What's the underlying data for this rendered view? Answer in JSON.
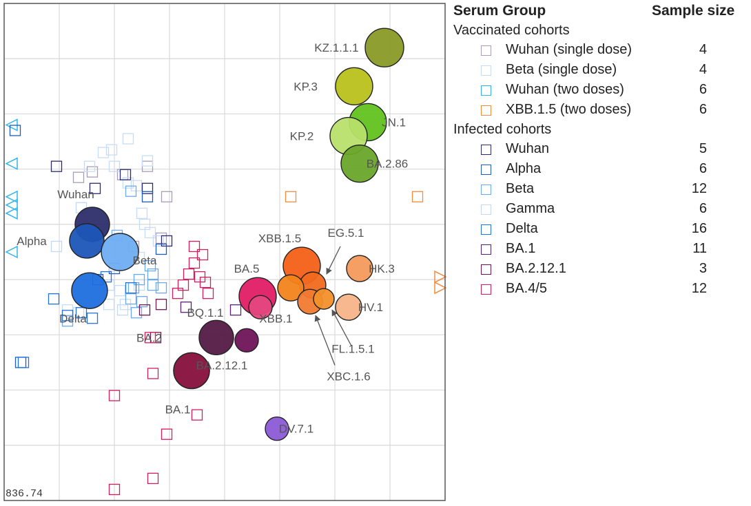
{
  "chart_data": {
    "type": "scatter",
    "title": "",
    "scale_label": "836.74",
    "grid": true,
    "xlim": [
      0,
      8
    ],
    "ylim": [
      0,
      9
    ],
    "antigens": [
      {
        "name": "KZ.1.1.1",
        "x": 6.9,
        "y": 8.2,
        "size": 28,
        "color": "#8a9a26"
      },
      {
        "name": "KP.3",
        "x": 6.35,
        "y": 7.5,
        "size": 27,
        "color": "#b8c11c"
      },
      {
        "name": "JN.1",
        "x": 6.6,
        "y": 6.85,
        "size": 27,
        "color": "#62c21f"
      },
      {
        "name": "KP.2",
        "x": 6.25,
        "y": 6.6,
        "size": 27,
        "color": "#b7e06a"
      },
      {
        "name": "BA.2.86",
        "x": 6.45,
        "y": 6.1,
        "size": 27,
        "color": "#6aa52b"
      },
      {
        "name": "Wuhan",
        "x": 1.6,
        "y": 5.0,
        "size": 25,
        "color": "#2d2d6b"
      },
      {
        "name": "Alpha",
        "x": 1.5,
        "y": 4.7,
        "size": 25,
        "color": "#1c56b8"
      },
      {
        "name": "Beta",
        "x": 2.1,
        "y": 4.5,
        "size": 27,
        "color": "#6faef2"
      },
      {
        "name": "Delta",
        "x": 1.55,
        "y": 3.8,
        "size": 26,
        "color": "#1f6fde"
      },
      {
        "name": "XBB.1.5",
        "x": 5.4,
        "y": 4.25,
        "size": 27,
        "color": "#f46017"
      },
      {
        "name": "EG.5.1",
        "x": 5.6,
        "y": 3.9,
        "size": 19,
        "color": "#f26a1f"
      },
      {
        "name": "HK.3",
        "x": 6.45,
        "y": 4.2,
        "size": 19,
        "color": "#f59a5c"
      },
      {
        "name": "BA.5",
        "x": 4.6,
        "y": 3.7,
        "size": 27,
        "color": "#e01e66"
      },
      {
        "name": "XBB",
        "x": 5.2,
        "y": 3.85,
        "size": 19,
        "color": "#f3841b"
      },
      {
        "name": "XBB.1",
        "x": 4.65,
        "y": 3.5,
        "size": 17,
        "color": "#e4477e"
      },
      {
        "name": "XBC.1.6",
        "x": 5.55,
        "y": 3.6,
        "size": 18,
        "color": "#f07a30"
      },
      {
        "name": "FL.1.5.1",
        "x": 5.8,
        "y": 3.65,
        "size": 15,
        "color": "#f3902a"
      },
      {
        "name": "HV.1",
        "x": 6.25,
        "y": 3.5,
        "size": 19,
        "color": "#f7b489"
      },
      {
        "name": "BQ.1.1",
        "x": 3.85,
        "y": 2.95,
        "size": 25,
        "color": "#531a45"
      },
      {
        "name": "BA.2.12.1",
        "x": 4.4,
        "y": 2.9,
        "size": 17,
        "color": "#6f1459"
      },
      {
        "name": "BA.2",
        "x": 3.4,
        "y": 2.35,
        "size": 26,
        "color": "#8c1a46"
      },
      {
        "name": "BA.1",
        "x": 3.4,
        "y": 2.35,
        "size": 26,
        "color": "#8c1a46"
      },
      {
        "name": "DV.7.1",
        "x": 4.95,
        "y": 1.3,
        "size": 17,
        "color": "#8c5ad6"
      }
    ],
    "sera": [
      {
        "group": "Wuhan (single dose)",
        "x": 1.35,
        "y": 5.85
      },
      {
        "group": "Wuhan (single dose)",
        "x": 1.6,
        "y": 5.95
      },
      {
        "group": "Wuhan (single dose)",
        "x": 2.15,
        "y": 5.9
      },
      {
        "group": "Wuhan (single dose)",
        "x": 2.6,
        "y": 6.05
      },
      {
        "group": "Wuhan (single dose)",
        "x": 2.95,
        "y": 5.5
      },
      {
        "group": "Wuhan (single dose)",
        "x": 2.85,
        "y": 4.75
      },
      {
        "group": "Wuhan (single dose)",
        "x": 2.35,
        "y": 4.6
      },
      {
        "group": "Beta (single dose)",
        "x": 2.25,
        "y": 6.55
      },
      {
        "group": "Beta (single dose)",
        "x": 1.95,
        "y": 6.35
      },
      {
        "group": "Beta (single dose)",
        "x": 1.8,
        "y": 6.3
      },
      {
        "group": "Beta (single dose)",
        "x": 2.6,
        "y": 6.15
      },
      {
        "group": "Beta (single dose)",
        "x": 1.55,
        "y": 6.05
      },
      {
        "group": "Beta (single dose)",
        "x": 2.4,
        "y": 5.7
      },
      {
        "group": "Beta (single dose)",
        "x": 2.25,
        "y": 5.75
      },
      {
        "group": "Beta (single dose)",
        "x": 2.5,
        "y": 5.2
      },
      {
        "group": "Beta (single dose)",
        "x": 2.55,
        "y": 5.0
      },
      {
        "group": "Beta (single dose)",
        "x": 2.65,
        "y": 4.85
      },
      {
        "group": "Beta (single dose)",
        "x": 2.8,
        "y": 4.7
      },
      {
        "group": "Beta (single dose)",
        "x": 2.45,
        "y": 4.4
      },
      {
        "group": "Beta (single dose)",
        "x": 2.1,
        "y": 3.8
      },
      {
        "group": "Beta (single dose)",
        "x": 1.9,
        "y": 3.55
      },
      {
        "group": "Beta (single dose)",
        "x": 2.2,
        "y": 3.55
      },
      {
        "group": "Beta (single dose)",
        "x": 2.45,
        "y": 3.9
      },
      {
        "group": "Beta (single dose)",
        "x": 1.35,
        "y": 3.4
      },
      {
        "group": "Beta (single dose)",
        "x": 1.15,
        "y": 3.45
      },
      {
        "group": "Beta (single dose)",
        "x": 2.0,
        "y": 6.05
      },
      {
        "group": "Wuhan (two doses)",
        "x": 0.15,
        "y": 6.8,
        "marker": "triangle-left"
      },
      {
        "group": "Wuhan (two doses)",
        "x": 0.15,
        "y": 6.1,
        "marker": "triangle-left"
      },
      {
        "group": "Wuhan (two doses)",
        "x": 0.15,
        "y": 5.5,
        "marker": "triangle-left"
      },
      {
        "group": "Wuhan (two doses)",
        "x": 0.15,
        "y": 5.35,
        "marker": "triangle-left"
      },
      {
        "group": "Wuhan (two doses)",
        "x": 0.15,
        "y": 5.2,
        "marker": "triangle-left"
      },
      {
        "group": "Wuhan (two doses)",
        "x": 0.15,
        "y": 4.5,
        "marker": "triangle-left"
      },
      {
        "group": "XBB.1.5 (two doses)",
        "x": 5.2,
        "y": 5.5
      },
      {
        "group": "XBB.1.5 (two doses)",
        "x": 7.5,
        "y": 5.5
      },
      {
        "group": "XBB.1.5 (two doses)",
        "x": 7.9,
        "y": 4.05,
        "marker": "triangle-right"
      },
      {
        "group": "XBB.1.5 (two doses)",
        "x": 7.9,
        "y": 3.85,
        "marker": "triangle-right"
      },
      {
        "group": "Wuhan",
        "x": 0.95,
        "y": 6.05
      },
      {
        "group": "Wuhan",
        "x": 1.65,
        "y": 5.65
      },
      {
        "group": "Wuhan",
        "x": 2.2,
        "y": 5.9
      },
      {
        "group": "Wuhan",
        "x": 2.6,
        "y": 5.65
      },
      {
        "group": "Wuhan",
        "x": 2.95,
        "y": 4.7
      },
      {
        "group": "Alpha",
        "x": 0.2,
        "y": 6.7
      },
      {
        "group": "Alpha",
        "x": 2.6,
        "y": 5.5
      },
      {
        "group": "Alpha",
        "x": 2.85,
        "y": 4.55
      },
      {
        "group": "Alpha",
        "x": 2.0,
        "y": 4.2
      },
      {
        "group": "Alpha",
        "x": 1.7,
        "y": 4.0
      },
      {
        "group": "Alpha",
        "x": 0.3,
        "y": 2.5
      },
      {
        "group": "Beta",
        "x": 2.3,
        "y": 5.6
      },
      {
        "group": "Beta",
        "x": 2.05,
        "y": 4.8
      },
      {
        "group": "Beta",
        "x": 2.65,
        "y": 4.25
      },
      {
        "group": "Beta",
        "x": 2.45,
        "y": 4.0
      },
      {
        "group": "Beta",
        "x": 2.7,
        "y": 3.9
      },
      {
        "group": "Beta",
        "x": 2.85,
        "y": 3.85
      },
      {
        "group": "Beta",
        "x": 2.3,
        "y": 3.65
      },
      {
        "group": "Beta",
        "x": 2.5,
        "y": 3.6
      },
      {
        "group": "Beta",
        "x": 2.35,
        "y": 3.85
      },
      {
        "group": "Beta",
        "x": 2.7,
        "y": 4.1
      },
      {
        "group": "Beta",
        "x": 2.4,
        "y": 3.4
      },
      {
        "group": "Beta",
        "x": 1.15,
        "y": 3.25
      },
      {
        "group": "Gamma",
        "x": 1.4,
        "y": 5.3
      },
      {
        "group": "Gamma",
        "x": 1.7,
        "y": 4.9
      },
      {
        "group": "Gamma",
        "x": 2.0,
        "y": 4.25
      },
      {
        "group": "Gamma",
        "x": 1.9,
        "y": 3.9
      },
      {
        "group": "Gamma",
        "x": 2.15,
        "y": 3.45
      },
      {
        "group": "Gamma",
        "x": 0.95,
        "y": 4.6
      },
      {
        "group": "Delta",
        "x": 0.9,
        "y": 3.65
      },
      {
        "group": "Delta",
        "x": 1.15,
        "y": 3.35
      },
      {
        "group": "Delta",
        "x": 1.4,
        "y": 3.4
      },
      {
        "group": "Delta",
        "x": 1.6,
        "y": 3.3
      },
      {
        "group": "Delta",
        "x": 1.85,
        "y": 4.05
      },
      {
        "group": "Delta",
        "x": 2.3,
        "y": 3.85
      },
      {
        "group": "Delta",
        "x": 0.35,
        "y": 2.5
      },
      {
        "group": "BA.1",
        "x": 3.3,
        "y": 3.5
      },
      {
        "group": "BA.1",
        "x": 4.2,
        "y": 3.45
      },
      {
        "group": "BA.2.12.1",
        "x": 2.85,
        "y": 3.55
      },
      {
        "group": "BA.2.12.1",
        "x": 2.55,
        "y": 3.45
      },
      {
        "group": "BA.2.12.1",
        "x": 2.75,
        "y": 2.95
      },
      {
        "group": "BA.4/5",
        "x": 3.6,
        "y": 4.45
      },
      {
        "group": "BA.4/5",
        "x": 3.45,
        "y": 4.3
      },
      {
        "group": "BA.4/5",
        "x": 3.35,
        "y": 4.1
      },
      {
        "group": "BA.4/5",
        "x": 3.55,
        "y": 4.05
      },
      {
        "group": "BA.4/5",
        "x": 3.65,
        "y": 3.95
      },
      {
        "group": "BA.4/5",
        "x": 3.25,
        "y": 3.9
      },
      {
        "group": "BA.4/5",
        "x": 3.7,
        "y": 3.75
      },
      {
        "group": "BA.4/5",
        "x": 3.15,
        "y": 3.75
      },
      {
        "group": "BA.4/5",
        "x": 2.65,
        "y": 2.95
      },
      {
        "group": "BA.4/5",
        "x": 2.7,
        "y": 2.3
      },
      {
        "group": "BA.4/5",
        "x": 2.0,
        "y": 1.9
      },
      {
        "group": "BA.4/5",
        "x": 2.95,
        "y": 1.2
      },
      {
        "group": "BA.4/5",
        "x": 3.5,
        "y": 1.55
      },
      {
        "group": "BA.4/5",
        "x": 2.7,
        "y": 0.4
      },
      {
        "group": "BA.4/5",
        "x": 2.0,
        "y": 0.2
      },
      {
        "group": "BA.4/5",
        "x": 3.45,
        "y": 4.6
      }
    ],
    "labels": [
      {
        "text": "KZ.1.1.1",
        "x": 6.03,
        "y": 8.2
      },
      {
        "text": "KP.3",
        "x": 5.47,
        "y": 7.5
      },
      {
        "text": "JN.1",
        "x": 7.07,
        "y": 6.85
      },
      {
        "text": "KP.2",
        "x": 5.4,
        "y": 6.6
      },
      {
        "text": "BA.2.86",
        "x": 6.95,
        "y": 6.1
      },
      {
        "text": "Wuhan",
        "x": 1.3,
        "y": 5.55
      },
      {
        "text": "Alpha",
        "x": 0.5,
        "y": 4.7
      },
      {
        "text": "Beta",
        "x": 2.55,
        "y": 4.35
      },
      {
        "text": "Delta",
        "x": 1.25,
        "y": 3.3
      },
      {
        "text": "XBB.1.5",
        "x": 5.0,
        "y": 4.75
      },
      {
        "text": "EG.5.1",
        "x": 6.2,
        "y": 4.85
      },
      {
        "text": "HK.3",
        "x": 6.85,
        "y": 4.2
      },
      {
        "text": "BA.5",
        "x": 4.4,
        "y": 4.2
      },
      {
        "text": "XBB.1",
        "x": 4.93,
        "y": 3.3
      },
      {
        "text": "HV.1",
        "x": 6.65,
        "y": 3.5
      },
      {
        "text": "FL.1.5.1",
        "x": 6.33,
        "y": 2.75
      },
      {
        "text": "XBC.1.6",
        "x": 6.25,
        "y": 2.25
      },
      {
        "text": "BQ.1.1",
        "x": 3.65,
        "y": 3.4
      },
      {
        "text": "BA.2",
        "x": 2.63,
        "y": 2.95
      },
      {
        "text": "BA.2.12.1",
        "x": 3.95,
        "y": 2.45
      },
      {
        "text": "BA.1",
        "x": 3.15,
        "y": 1.65
      },
      {
        "text": "DV.7.1",
        "x": 5.3,
        "y": 1.3
      }
    ],
    "arrows": [
      {
        "from": [
          6.1,
          4.6
        ],
        "to": [
          5.85,
          4.1
        ]
      },
      {
        "from": [
          6.3,
          2.8
        ],
        "to": [
          5.95,
          3.45
        ]
      },
      {
        "from": [
          6.0,
          2.45
        ],
        "to": [
          5.65,
          3.35
        ]
      }
    ]
  },
  "legend": {
    "title": "Serum Group",
    "size_header": "Sample size",
    "vaccinated_header": "Vaccinated cohorts",
    "infected_header": "Infected cohorts",
    "vaccinated": [
      {
        "label": "Wuhan (single dose)",
        "n": "4",
        "color": "#a89cb8"
      },
      {
        "label": "Beta (single dose)",
        "n": "4",
        "color": "#c7dcf4"
      },
      {
        "label": "Wuhan (two doses)",
        "n": "6",
        "color": "#2fb5ec"
      },
      {
        "label": "XBB.1.5 (two doses)",
        "n": "6",
        "color": "#f48b3d"
      }
    ],
    "infected": [
      {
        "label": "Wuhan",
        "n": "5",
        "color": "#2a2a70"
      },
      {
        "label": "Alpha",
        "n": "6",
        "color": "#1d5bc2"
      },
      {
        "label": "Beta",
        "n": "12",
        "color": "#6aaaf0"
      },
      {
        "label": "Gamma",
        "n": "6",
        "color": "#c3d8f4"
      },
      {
        "label": "Delta",
        "n": "16",
        "color": "#1f72e0"
      },
      {
        "label": "BA.1",
        "n": "11",
        "color": "#5a1f73"
      },
      {
        "label": "BA.2.12.1",
        "n": "3",
        "color": "#6b1554"
      },
      {
        "label": "BA.4/5",
        "n": "12",
        "color": "#d41e5c"
      }
    ]
  }
}
